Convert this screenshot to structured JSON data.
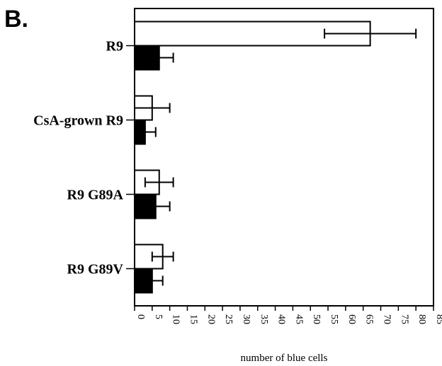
{
  "panel_label": "B.",
  "chart_data": {
    "type": "bar",
    "orientation": "horizontal",
    "categories": [
      "R9",
      "CsA-grown R9",
      "R9 G89A",
      "R9 G89V"
    ],
    "series": [
      {
        "fill": "#ffffff",
        "values": [
          67,
          5,
          7,
          8
        ],
        "errors": [
          13,
          5,
          4,
          3
        ]
      },
      {
        "fill": "#000000",
        "values": [
          7,
          3,
          6,
          5
        ],
        "errors": [
          4,
          3,
          4,
          3
        ]
      }
    ],
    "xlabel": "number of blue cells",
    "xlim": [
      0,
      85
    ],
    "xticks": [
      "0",
      "5",
      "10",
      "15",
      "20",
      "25",
      "30",
      "35",
      "40",
      "45",
      "50",
      "55",
      "60",
      "65",
      "70",
      "75",
      "80",
      "85"
    ]
  }
}
